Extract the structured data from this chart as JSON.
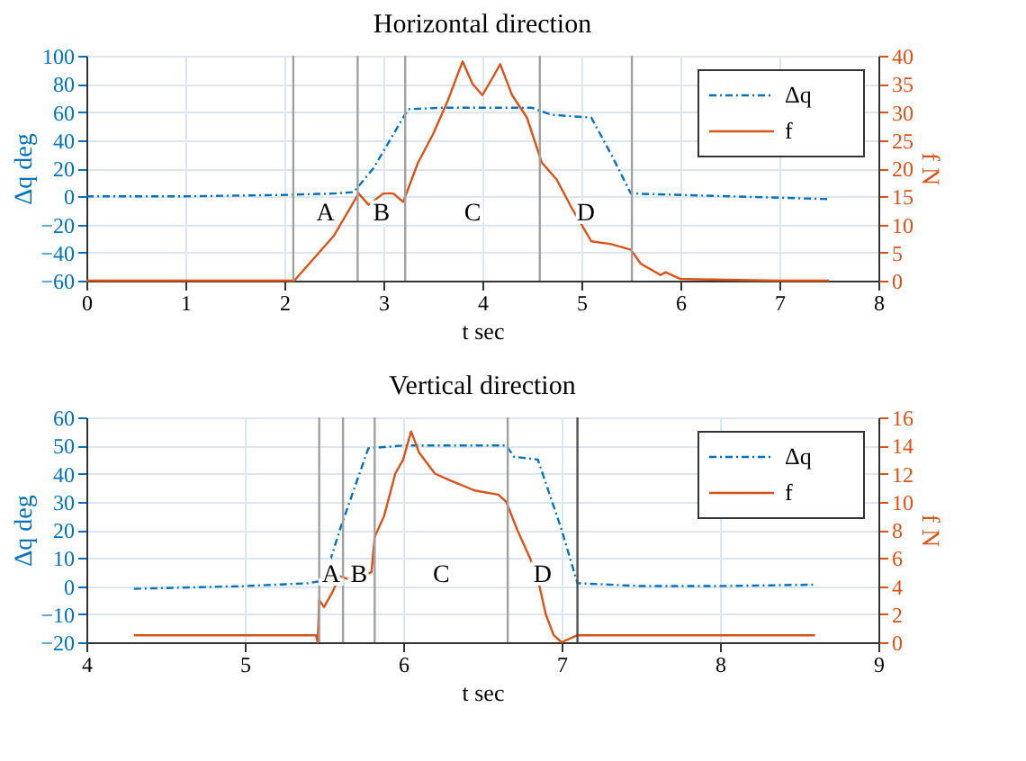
{
  "chart_data": [
    {
      "type": "line",
      "title": "Horizontal direction",
      "xlabel": "t sec",
      "ylabel": "Δq deg",
      "y2label": "f N",
      "xlim": [
        0,
        8
      ],
      "xticks": [
        0,
        1,
        2,
        3,
        4,
        5,
        6,
        7,
        8
      ],
      "ylim": [
        -60,
        100
      ],
      "yticks": [
        -60,
        -40,
        -20,
        0,
        20,
        40,
        60,
        80,
        100
      ],
      "y2lim": [
        0,
        40
      ],
      "y2ticks": [
        0,
        5,
        10,
        15,
        20,
        25,
        30,
        35,
        40
      ],
      "grid": true,
      "legend": "top right",
      "marker": "none",
      "series": [
        {
          "name": "Δq",
          "color": "#0072bd",
          "line_style": "dashdot",
          "x": [
            0,
            1,
            2,
            2.5,
            2.7,
            2.9,
            3.25,
            3.6,
            4.0,
            4.5,
            4.7,
            5.1,
            5.3,
            5.5,
            6,
            7,
            7.5
          ],
          "values": [
            0,
            0,
            1,
            2,
            3,
            20,
            62,
            63,
            63,
            63,
            58,
            56,
            30,
            2,
            1,
            -1,
            -2
          ]
        },
        {
          "name": "f",
          "color": "#d95319",
          "axis": "y2",
          "line_style": "solid",
          "x": [
            0,
            1,
            2,
            2.1,
            2.3,
            2.5,
            2.6,
            2.75,
            2.85,
            3.0,
            3.1,
            3.2,
            3.35,
            3.5,
            3.65,
            3.8,
            3.9,
            4.0,
            4.1,
            4.18,
            4.3,
            4.45,
            4.6,
            4.75,
            4.9,
            5.0,
            5.1,
            5.3,
            5.5,
            5.6,
            5.8,
            5.85,
            6,
            7,
            7.5
          ],
          "values": [
            0,
            0,
            0,
            0,
            4,
            8,
            11,
            15.5,
            13.5,
            15.5,
            15.5,
            14,
            21,
            26,
            32,
            39,
            35,
            33,
            36,
            38.5,
            33,
            29,
            21,
            18,
            13,
            10,
            7,
            6.5,
            5.5,
            3,
            1,
            1.5,
            0.3,
            0,
            0
          ]
        }
      ],
      "ref_lines": [
        {
          "axis": "x",
          "value": 2.09,
          "color": "#a0a0a0"
        },
        {
          "axis": "x",
          "value": 2.74,
          "color": "#a0a0a0"
        },
        {
          "axis": "x",
          "value": 3.22,
          "color": "#a0a0a0"
        },
        {
          "axis": "x",
          "value": 4.58,
          "color": "#a0a0a0"
        },
        {
          "axis": "x",
          "value": 5.51,
          "color": "#a0a0a0"
        }
      ],
      "annotations": [
        "A",
        "B",
        "C",
        "D"
      ]
    },
    {
      "type": "line",
      "title": "Vertical direction",
      "xlabel": "t sec",
      "ylabel": "Δq deg",
      "y2label": "f N",
      "xlim": [
        4,
        9
      ],
      "xticks": [
        4,
        5,
        6,
        7,
        8,
        9
      ],
      "ylim": [
        -20,
        60
      ],
      "yticks": [
        -20,
        -10,
        0,
        10,
        20,
        30,
        40,
        50,
        60
      ],
      "y2lim": [
        0,
        16
      ],
      "y2ticks": [
        0,
        2,
        4,
        6,
        8,
        10,
        12,
        14,
        16
      ],
      "grid": true,
      "legend": "top right",
      "marker": "none",
      "series": [
        {
          "name": "Δq",
          "color": "#0072bd",
          "line_style": "dashdot",
          "x": [
            4.3,
            5,
            5.4,
            5.5,
            5.6,
            5.78,
            6.0,
            6.3,
            6.65,
            6.7,
            6.85,
            7.0,
            7.1,
            7.5,
            8,
            8.6
          ],
          "values": [
            -1,
            0,
            1,
            2,
            20,
            49,
            50,
            50,
            50,
            46,
            45,
            20,
            1,
            0,
            0,
            0.5
          ]
        },
        {
          "name": "f",
          "color": "#d95319",
          "axis": "y2",
          "line_style": "solid",
          "x": [
            4.3,
            5,
            5.45,
            5.46,
            5.47,
            5.5,
            5.55,
            5.6,
            5.65,
            5.75,
            5.8,
            5.82,
            5.88,
            5.95,
            6.0,
            6.05,
            6.1,
            6.2,
            6.3,
            6.45,
            6.6,
            6.65,
            6.72,
            6.8,
            6.85,
            6.9,
            6.95,
            7.0,
            7.1,
            8,
            8.6
          ],
          "values": [
            0.5,
            0.5,
            0.5,
            0,
            3,
            2.5,
            3.5,
            4.7,
            4.5,
            4.7,
            5,
            7.5,
            9,
            12,
            13,
            15,
            13.5,
            12,
            11.5,
            10.8,
            10.5,
            10,
            8,
            6,
            4.5,
            2,
            0.5,
            0,
            0.5,
            0.5,
            0.5
          ]
        }
      ],
      "ref_lines": [
        {
          "axis": "x",
          "value": 5.47,
          "color": "#a0a0a0"
        },
        {
          "axis": "x",
          "value": 5.62,
          "color": "#a0a0a0"
        },
        {
          "axis": "x",
          "value": 5.82,
          "color": "#a0a0a0"
        },
        {
          "axis": "x",
          "value": 6.66,
          "color": "#a0a0a0"
        },
        {
          "axis": "x",
          "value": 7.1,
          "color": "#505050"
        }
      ],
      "annotations": [
        "A",
        "B",
        "C",
        "D"
      ]
    }
  ]
}
